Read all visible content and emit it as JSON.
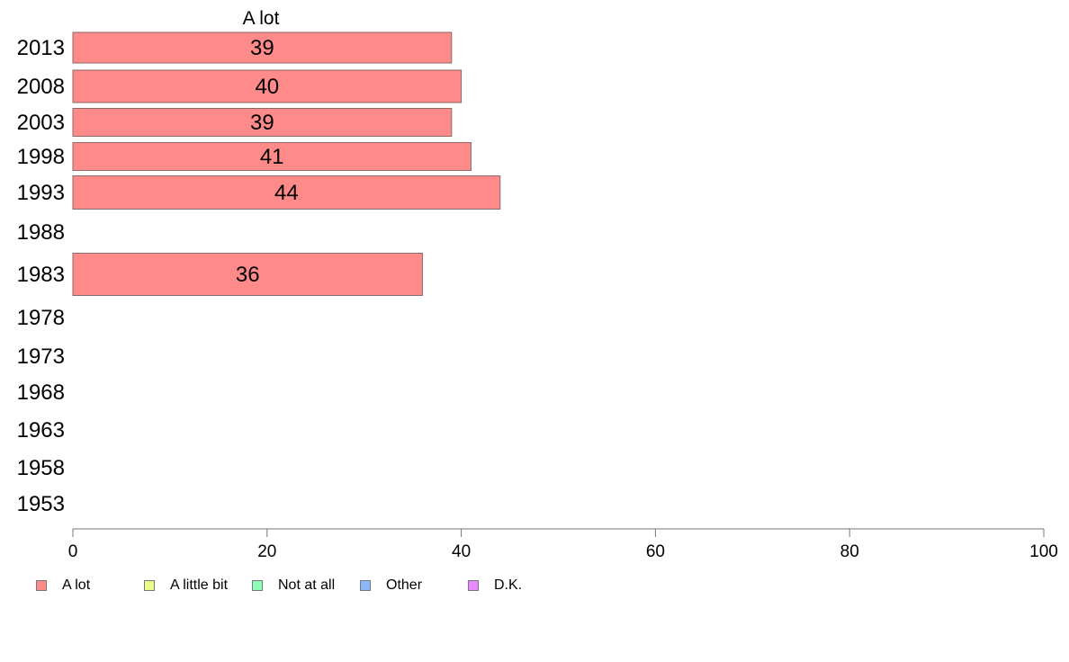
{
  "chart_data": {
    "type": "bar",
    "orientation": "horizontal",
    "series_header": "A lot",
    "categories": [
      "2013",
      "2008",
      "2003",
      "1998",
      "1993",
      "1988",
      "1983",
      "1978",
      "1973",
      "1968",
      "1963",
      "1958",
      "1953"
    ],
    "series": [
      {
        "name": "A lot",
        "color": "#ff8a8a",
        "values": [
          39,
          40,
          39,
          41,
          44,
          null,
          36,
          null,
          null,
          null,
          null,
          null,
          null
        ]
      }
    ],
    "xlim": [
      0,
      100
    ],
    "xticks": [
      0,
      20,
      40,
      60,
      80,
      100
    ],
    "grid": false,
    "legend_position": "bottom",
    "legend": [
      {
        "label": "A lot",
        "color": "#ff8a8a"
      },
      {
        "label": "A little bit",
        "color": "#eaff8a"
      },
      {
        "label": "Not at all",
        "color": "#8affb8"
      },
      {
        "label": "Other",
        "color": "#8ab8ff"
      },
      {
        "label": "D.K.",
        "color": "#ea8aff"
      }
    ]
  }
}
